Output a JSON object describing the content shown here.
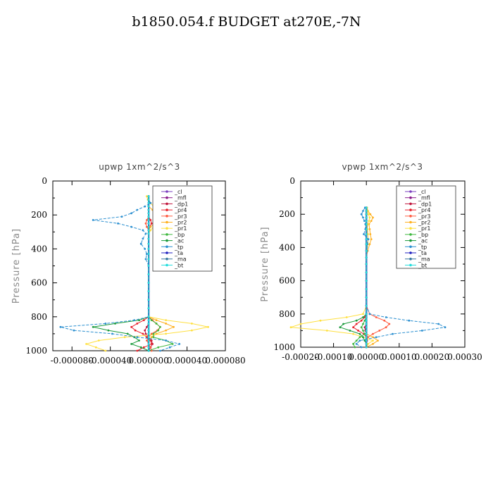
{
  "title": "b1850.054.f  BUDGET at270E,-7N",
  "legend_entries": [
    "_cl",
    "_mfl",
    "_dp1",
    "_pr4",
    "_pr3",
    "_pr2",
    "_pr1",
    "_bp",
    "_ac",
    "_tp",
    "_ta",
    "_ma",
    "_bt"
  ],
  "colors": {
    "_cl": "#7b3fbf",
    "_mfl": "#8a1a8a",
    "_dp1": "#c0143c",
    "_pr4": "#e8202a",
    "_pr3": "#ff5a40",
    "_pr2": "#ffb020",
    "_pr1": "#ffe040",
    "_bp": "#3fb83f",
    "_ac": "#1a9a3a",
    "_tp": "#2a8fd0",
    "_ta": "#2020c0",
    "_ma": "#3a7aa0",
    "_bt": "#22dddd"
  },
  "chart_data": [
    {
      "type": "line",
      "subtitle": "upwp   1xm^2/s^3",
      "ylabel": "Pressure [hPa]",
      "xlim": [
        -0.0001,
        8e-05
      ],
      "ylim": [
        1000,
        0
      ],
      "xticks": [
        -8e-05,
        -4e-05,
        0,
        4e-05,
        8e-05
      ],
      "xtick_labels": [
        "-0.000080",
        "-0.000040",
        "0.000000",
        "0.000040",
        "0.000080"
      ],
      "yticks": [
        0,
        200,
        400,
        600,
        800,
        1000
      ],
      "legend_position": "top-right",
      "levels": [
        90,
        110,
        130,
        150,
        170,
        190,
        210,
        230,
        250,
        270,
        290,
        310,
        340,
        370,
        400,
        430,
        460,
        500,
        550,
        600,
        650,
        700,
        750,
        800,
        820,
        840,
        860,
        880,
        900,
        920,
        940,
        960,
        980,
        1000
      ],
      "series": [
        {
          "name": "_cl",
          "values": [
            0,
            0,
            0,
            0,
            0,
            0,
            0,
            0,
            0,
            0,
            0,
            0,
            0,
            0,
            0,
            0,
            0,
            0,
            0,
            0,
            0,
            0,
            0,
            0,
            0,
            0,
            0,
            0,
            0,
            0,
            0,
            0,
            0,
            0
          ]
        },
        {
          "name": "_mfl",
          "values": [
            0,
            0,
            0,
            0,
            0,
            0,
            0,
            0,
            0,
            0,
            0,
            0,
            0,
            0,
            0,
            0,
            0,
            0,
            0,
            0,
            0,
            0,
            0,
            0,
            0,
            0,
            0,
            0,
            0,
            0,
            0,
            0,
            0,
            0
          ]
        },
        {
          "name": "_dp1",
          "values": [
            0,
            0,
            0,
            0,
            0,
            0,
            0,
            0,
            0,
            0,
            0,
            0,
            0,
            0,
            0,
            0,
            0,
            0,
            0,
            0,
            0,
            0,
            0,
            0,
            0,
            0,
            -2e-06,
            -4e-06,
            -3e-06,
            0,
            3e-06,
            4e-06,
            2e-06,
            0
          ]
        },
        {
          "name": "_pr4",
          "values": [
            0,
            0,
            0,
            0,
            0,
            0,
            0,
            2e-06,
            3e-06,
            1e-06,
            0,
            0,
            0,
            0,
            0,
            0,
            0,
            0,
            0,
            0,
            0,
            0,
            0,
            0,
            -5e-06,
            -1.2e-05,
            -1.8e-05,
            -1.4e-05,
            -6e-06,
            -2e-06,
            2e-06,
            3e-06,
            -5e-06,
            -1.2e-05
          ]
        },
        {
          "name": "_pr3",
          "values": [
            0,
            0,
            0,
            0,
            0,
            0,
            0,
            -2e-06,
            -3e-06,
            -2e-06,
            0,
            0,
            0,
            0,
            0,
            0,
            0,
            0,
            0,
            0,
            0,
            0,
            0,
            0,
            4e-06,
            8e-06,
            1.2e-05,
            9e-06,
            3e-06,
            0,
            -2e-06,
            0,
            2e-06,
            3e-06
          ]
        },
        {
          "name": "_pr2",
          "values": [
            0,
            0,
            0,
            0,
            4e-06,
            8e-06,
            1.6e-05,
            1.2e-05,
            6e-06,
            2e-06,
            0,
            0,
            0,
            0,
            0,
            0,
            0,
            0,
            0,
            0,
            0,
            0,
            0,
            0,
            8e-06,
            1.8e-05,
            2.6e-05,
            1.8e-05,
            8e-06,
            3e-06,
            0,
            0,
            0,
            0
          ]
        },
        {
          "name": "_pr1",
          "values": [
            -2e-06,
            -1e-06,
            2e-06,
            5e-06,
            1.2e-05,
            2.2e-05,
            3.2e-05,
            2.5e-05,
            1.2e-05,
            5e-06,
            2e-06,
            0,
            0,
            0,
            0,
            0,
            0,
            0,
            0,
            0,
            0,
            0,
            0,
            0,
            1.8e-05,
            4.5e-05,
            6.2e-05,
            4.5e-05,
            1.8e-05,
            -2.5e-05,
            -5.2e-05,
            -6.5e-05,
            -5.5e-05,
            -4.5e-05
          ]
        },
        {
          "name": "_bp",
          "values": [
            0,
            0,
            0,
            0,
            0,
            0,
            0,
            0,
            0,
            0,
            0,
            0,
            0,
            0,
            0,
            0,
            0,
            0,
            0,
            0,
            0,
            0,
            0,
            0,
            3e-06,
            8e-06,
            1.2e-05,
            1e-05,
            5e-06,
            5e-06,
            1.8e-05,
            2.5e-05,
            1e-05,
            0
          ]
        },
        {
          "name": "_ac",
          "values": [
            0,
            0,
            0,
            0,
            0,
            0,
            0,
            0,
            0,
            0,
            0,
            0,
            0,
            0,
            0,
            0,
            0,
            0,
            0,
            0,
            0,
            0,
            0,
            0,
            -1e-05,
            -3.5e-05,
            -5.8e-05,
            -4.2e-05,
            -2.2e-05,
            -1.5e-05,
            -1e-05,
            -1.8e-05,
            -8e-06,
            0
          ]
        },
        {
          "name": "_tp",
          "values": [
            0,
            0,
            2e-06,
            -4e-06,
            -1.2e-05,
            -1.8e-05,
            -2.8e-05,
            -5.8e-05,
            -3.2e-05,
            -1.8e-05,
            -6e-06,
            -3e-06,
            -6e-06,
            -8e-06,
            -4e-06,
            -2e-06,
            -3e-06,
            0,
            0,
            0,
            0,
            0,
            0,
            0,
            -1.5e-05,
            -4.5e-05,
            -9.2e-05,
            -7.8e-05,
            -3.8e-05,
            -1.2e-05,
            1.8e-05,
            3.2e-05,
            2.2e-05,
            1.2e-05
          ]
        },
        {
          "name": "_ta",
          "values": [
            0,
            0,
            0,
            0,
            0,
            0,
            0,
            0,
            0,
            0,
            0,
            0,
            0,
            0,
            0,
            0,
            0,
            0,
            0,
            0,
            0,
            0,
            0,
            0,
            0,
            0,
            0,
            0,
            0,
            0,
            0,
            0,
            0,
            0
          ]
        },
        {
          "name": "_ma",
          "values": [
            0,
            0,
            0,
            0,
            0,
            0,
            0,
            0,
            0,
            0,
            0,
            0,
            0,
            0,
            0,
            0,
            0,
            0,
            0,
            0,
            0,
            0,
            0,
            0,
            0,
            0,
            0,
            0,
            0,
            0,
            0,
            0,
            0,
            0
          ]
        },
        {
          "name": "_bt",
          "values": [
            0,
            0,
            0,
            0,
            0,
            0,
            0,
            0,
            0,
            0,
            0,
            0,
            0,
            0,
            0,
            0,
            0,
            0,
            0,
            0,
            0,
            0,
            0,
            0,
            0,
            0,
            0,
            0,
            0,
            0,
            0,
            0,
            0,
            0
          ]
        }
      ]
    },
    {
      "type": "line",
      "subtitle": "vpwp   1xm^2/s^3",
      "ylabel": "Pressure [hPa]",
      "xlim": [
        -0.0002,
        0.0003
      ],
      "ylim": [
        1000,
        0
      ],
      "xticks": [
        -0.0002,
        -0.0001,
        0,
        0.0001,
        0.0002,
        0.0003
      ],
      "xtick_labels": [
        "-0.00020",
        "-0.00010",
        "0.00000",
        "0.00010",
        "0.00020",
        "0.00030"
      ],
      "yticks": [
        0,
        200,
        400,
        600,
        800,
        1000
      ],
      "legend_position": "top-right",
      "levels": [
        160,
        180,
        200,
        220,
        240,
        260,
        290,
        320,
        350,
        380,
        420,
        460,
        500,
        550,
        600,
        650,
        700,
        750,
        800,
        820,
        840,
        860,
        880,
        900,
        920,
        940,
        960,
        980,
        1000
      ],
      "series": [
        {
          "name": "_cl",
          "values": [
            0,
            0,
            0,
            0,
            0,
            0,
            0,
            0,
            0,
            0,
            0,
            0,
            0,
            0,
            0,
            0,
            0,
            0,
            0,
            0,
            0,
            0,
            0,
            0,
            0,
            0,
            0,
            0,
            0
          ]
        },
        {
          "name": "_mfl",
          "values": [
            0,
            0,
            0,
            0,
            0,
            0,
            0,
            0,
            0,
            0,
            0,
            0,
            0,
            0,
            0,
            0,
            0,
            0,
            0,
            0,
            0,
            0,
            0,
            0,
            0,
            0,
            0,
            0,
            0
          ]
        },
        {
          "name": "_dp1",
          "values": [
            0,
            0,
            0,
            0,
            0,
            0,
            0,
            0,
            0,
            0,
            0,
            0,
            0,
            0,
            0,
            0,
            0,
            0,
            0,
            0,
            0,
            0,
            -5e-06,
            -3e-06,
            0,
            3e-06,
            2e-06,
            0,
            0
          ]
        },
        {
          "name": "_pr4",
          "values": [
            0,
            0,
            0,
            0,
            0,
            0,
            0,
            0,
            0,
            0,
            0,
            0,
            0,
            0,
            0,
            0,
            0,
            0,
            0,
            -5e-06,
            -1.5e-05,
            -3e-05,
            -4e-05,
            -2.5e-05,
            -8e-06,
            0,
            0,
            0,
            0
          ]
        },
        {
          "name": "_pr3",
          "values": [
            0,
            0,
            0,
            0,
            0,
            0,
            0,
            0,
            0,
            0,
            0,
            0,
            0,
            0,
            0,
            0,
            0,
            0,
            1e-05,
            3e-05,
            5.5e-05,
            7e-05,
            6e-05,
            4e-05,
            2e-05,
            5e-06,
            0,
            0,
            0
          ]
        },
        {
          "name": "_pr2",
          "values": [
            2e-06,
            5e-06,
            1.2e-05,
            2e-05,
            1.5e-05,
            8e-06,
            1e-05,
            1.2e-05,
            1.5e-05,
            1e-05,
            4e-06,
            0,
            0,
            0,
            0,
            0,
            0,
            0,
            0,
            0,
            0,
            0,
            0,
            0,
            0,
            2e-05,
            3.5e-05,
            2e-05,
            0
          ]
        },
        {
          "name": "_pr1",
          "values": [
            2e-06,
            4e-06,
            6e-06,
            1e-05,
            8e-06,
            4e-06,
            3e-06,
            5e-06,
            6e-06,
            4e-06,
            2e-06,
            0,
            0,
            0,
            0,
            0,
            0,
            0,
            -1e-05,
            -6e-05,
            -0.00014,
            -0.0002,
            -0.00023,
            -0.00012,
            -4e-05,
            -1e-05,
            2e-05,
            5e-06,
            0
          ]
        },
        {
          "name": "_bp",
          "values": [
            0,
            0,
            0,
            0,
            0,
            0,
            0,
            0,
            0,
            0,
            0,
            0,
            0,
            0,
            0,
            0,
            0,
            0,
            0,
            0,
            -5e-06,
            -1e-05,
            -1.5e-05,
            -1e-05,
            -5e-06,
            -2e-05,
            -3e-05,
            -4e-05,
            -3.5e-05
          ]
        },
        {
          "name": "_ac",
          "values": [
            0,
            0,
            0,
            0,
            0,
            0,
            0,
            0,
            0,
            0,
            0,
            0,
            0,
            0,
            0,
            0,
            0,
            0,
            0,
            -1e-05,
            -3e-05,
            -7e-05,
            -8e-05,
            -5e-05,
            -2e-05,
            -1e-05,
            -5e-06,
            0,
            0
          ]
        },
        {
          "name": "_tp",
          "values": [
            -4e-06,
            -1e-05,
            -1.5e-05,
            -1e-05,
            -6e-06,
            -3e-06,
            -3e-06,
            -8e-06,
            6e-06,
            3e-06,
            2e-06,
            0,
            0,
            0,
            0,
            0,
            0,
            0,
            1e-05,
            6e-05,
            0.00013,
            0.00022,
            0.00024,
            0.00017,
            8e-05,
            3e-05,
            -2e-05,
            -3e-05,
            -1.5e-05
          ]
        },
        {
          "name": "_ta",
          "values": [
            0,
            0,
            0,
            0,
            0,
            0,
            0,
            0,
            0,
            0,
            0,
            0,
            0,
            0,
            0,
            0,
            0,
            0,
            0,
            0,
            0,
            0,
            0,
            0,
            0,
            0,
            0,
            0,
            0
          ]
        },
        {
          "name": "_ma",
          "values": [
            0,
            0,
            0,
            0,
            0,
            0,
            0,
            0,
            0,
            0,
            0,
            0,
            0,
            0,
            0,
            0,
            0,
            0,
            0,
            0,
            0,
            0,
            0,
            0,
            0,
            0,
            0,
            0,
            0
          ]
        },
        {
          "name": "_bt",
          "values": [
            0,
            0,
            0,
            0,
            0,
            0,
            0,
            0,
            0,
            0,
            0,
            0,
            0,
            0,
            0,
            0,
            0,
            0,
            0,
            0,
            0,
            0,
            0,
            0,
            0,
            0,
            0,
            0,
            0
          ]
        }
      ]
    }
  ]
}
